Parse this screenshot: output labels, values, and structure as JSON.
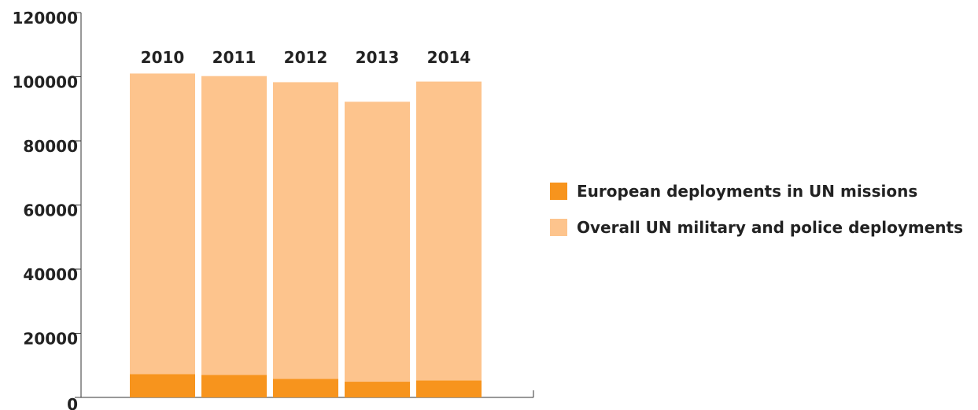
{
  "chart_data": {
    "type": "bar",
    "stacked": true,
    "categories": [
      "2010",
      "2011",
      "2012",
      "2013",
      "2014"
    ],
    "category_labels_position": "top",
    "series": [
      {
        "name": "European deployments in UN missions",
        "color": "#f7941d",
        "values": [
          7300,
          7000,
          5800,
          4900,
          5300
        ]
      },
      {
        "name": "Overall UN military and police deployments",
        "color": "#fdc48d",
        "values": [
          93700,
          93200,
          92500,
          87300,
          93200
        ]
      }
    ],
    "totals": [
      101000,
      100200,
      98300,
      92200,
      98500
    ],
    "y_ticks": [
      "0",
      "20000",
      "40000",
      "60000",
      "80000",
      "100000",
      "120000"
    ],
    "ylim": [
      0,
      120000
    ],
    "grid": false,
    "legend_position": "right"
  }
}
